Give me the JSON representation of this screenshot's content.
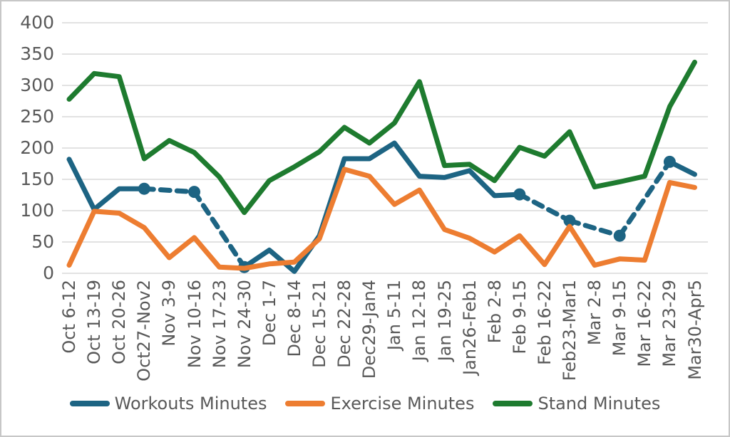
{
  "chart_data": {
    "type": "line",
    "title": "",
    "xlabel": "",
    "ylabel": "",
    "ylim": [
      0,
      400
    ],
    "ytick_step": 50,
    "grid": "horizontal",
    "legend_position": "bottom",
    "axis_text_color": "#595959",
    "gridline_color": "#d9d9d9",
    "categories": [
      "Oct 6-12",
      "Oct 13-19",
      "Oct 20-26",
      "Oct27-Nov2",
      "Nov 3-9",
      "Nov 10-16",
      "Nov 17-23",
      "Nov 24-30",
      "Dec 1-7",
      "Dec 8-14",
      "Dec 15-21",
      "Dec 22-28",
      "Dec29-Jan4",
      "Jan 5-11",
      "Jan 12-18",
      "Jan 19-25",
      "Jan26-Feb1",
      "Feb 2-8",
      "Feb 9-15",
      "Feb 16-22",
      "Feb23-Mar1",
      "Mar 2-8",
      "Mar 9-15",
      "Mar 16-22",
      "Mar 23-29",
      "Mar30-Apr5"
    ],
    "series": [
      {
        "name": "Workouts Minutes",
        "color": "#1d6483",
        "values": [
          182,
          102,
          135,
          135,
          null,
          130,
          null,
          10,
          37,
          3,
          60,
          183,
          183,
          208,
          155,
          153,
          164,
          124,
          126,
          null,
          84,
          null,
          60,
          null,
          178,
          158
        ],
        "marker_indices": [
          3,
          5,
          7,
          18,
          20,
          22,
          24
        ],
        "gap_style": "dashed"
      },
      {
        "name": "Exercise Minutes",
        "color": "#ed7d31",
        "values": [
          13,
          99,
          96,
          73,
          25,
          57,
          10,
          8,
          15,
          18,
          55,
          166,
          155,
          110,
          133,
          70,
          56,
          34,
          60,
          14,
          75,
          13,
          23,
          21,
          145,
          137
        ],
        "marker_indices": [],
        "gap_style": "dashed"
      },
      {
        "name": "Stand Minutes",
        "color": "#1e7b2f",
        "values": [
          278,
          319,
          314,
          183,
          212,
          193,
          154,
          97,
          148,
          170,
          194,
          233,
          208,
          240,
          306,
          172,
          174,
          148,
          201,
          187,
          226,
          138,
          146,
          155,
          266,
          337
        ],
        "marker_indices": [],
        "gap_style": "dashed"
      }
    ]
  }
}
